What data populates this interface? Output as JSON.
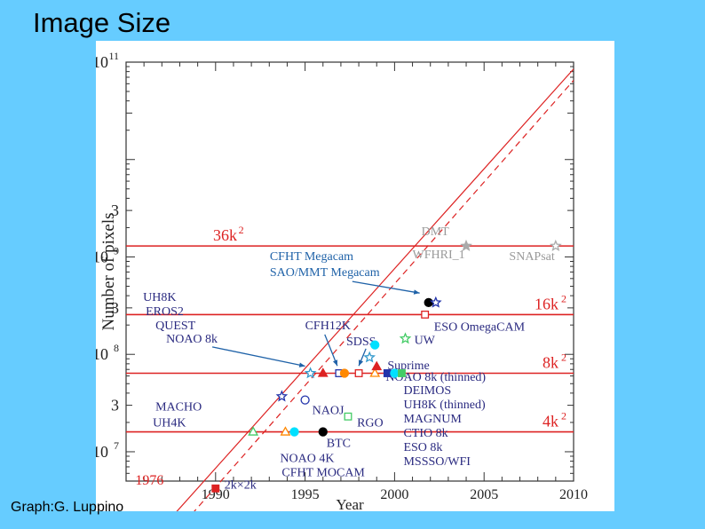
{
  "slide": {
    "title": "Image Size",
    "credit": "Graph:G. Luppino"
  },
  "chart_data": {
    "type": "scatter",
    "ylabel": "Number of pixels",
    "xlabel": "Year",
    "xlim": [
      1985,
      2010
    ],
    "ylim": [
      5000000,
      100000000000
    ],
    "yscale": "log",
    "x_ticks": [
      "1990",
      "1995",
      "2000",
      "2005",
      "2010"
    ],
    "y_tick_labels": [
      {
        "value": 100000000000,
        "base": "10",
        "exp": "11"
      },
      {
        "value": 3000000000,
        "base": "3",
        "exp": ""
      },
      {
        "value": 1000000000,
        "base": "10",
        "exp": "9"
      },
      {
        "value": 300000000,
        "base": "3",
        "exp": ""
      },
      {
        "value": 100000000,
        "base": "10",
        "exp": "8"
      },
      {
        "value": 30000000,
        "base": "3",
        "exp": ""
      },
      {
        "value": 10000000,
        "base": "10",
        "exp": "7"
      }
    ],
    "reference_lines": [
      {
        "label": "36k",
        "exp": "2",
        "value": 1296000000,
        "color": "#dd2222"
      },
      {
        "label": "16k",
        "exp": "2",
        "value": 256000000,
        "color": "#dd2222"
      },
      {
        "label": "8k",
        "exp": "2",
        "value": 64000000,
        "color": "#dd2222"
      },
      {
        "label": "4k",
        "exp": "2",
        "value": 16000000,
        "color": "#dd2222"
      }
    ],
    "trend_label": "1976",
    "points": [
      {
        "x": 1990,
        "y": 4200000,
        "shape": "square",
        "color": "#dd2222",
        "fill": true
      },
      {
        "x": 1992.1,
        "y": 16000000,
        "shape": "triangle",
        "color": "#44cc66",
        "fill": false
      },
      {
        "x": 1993.9,
        "y": 16000000,
        "shape": "triangle",
        "color": "#ff8800",
        "fill": false
      },
      {
        "x": 1994.4,
        "y": 16000000,
        "shape": "circle",
        "color": "#00e0ff",
        "fill": true
      },
      {
        "x": 1996,
        "y": 16000000,
        "shape": "circle",
        "color": "#000000",
        "fill": true
      },
      {
        "x": 1993.7,
        "y": 37000000,
        "shape": "star",
        "color": "#2233aa",
        "fill": false
      },
      {
        "x": 1995,
        "y": 34000000,
        "shape": "circle",
        "color": "#2233aa",
        "fill": false
      },
      {
        "x": 1997.4,
        "y": 23000000,
        "shape": "square",
        "color": "#44cc66",
        "fill": false
      },
      {
        "x": 1995.3,
        "y": 64000000,
        "shape": "star",
        "color": "#3399cc",
        "fill": false
      },
      {
        "x": 1996,
        "y": 64000000,
        "shape": "triangle",
        "color": "#dd2222",
        "fill": true
      },
      {
        "x": 1996.9,
        "y": 64000000,
        "shape": "square",
        "color": "#2233aa",
        "fill": false
      },
      {
        "x": 1997.2,
        "y": 64000000,
        "shape": "circle",
        "color": "#ff8800",
        "fill": true
      },
      {
        "x": 1998.0,
        "y": 64000000,
        "shape": "square",
        "color": "#dd2222",
        "fill": false
      },
      {
        "x": 1998.9,
        "y": 64000000,
        "shape": "triangle",
        "color": "#ff8800",
        "fill": false
      },
      {
        "x": 1999.6,
        "y": 64000000,
        "shape": "square",
        "color": "#2233aa",
        "fill": true
      },
      {
        "x": 2000.0,
        "y": 64000000,
        "shape": "circle",
        "color": "#00e0ff",
        "fill": true
      },
      {
        "x": 2000.4,
        "y": 64000000,
        "shape": "square",
        "color": "#44cc66",
        "fill": true
      },
      {
        "x": 1999.0,
        "y": 75000000,
        "shape": "triangle",
        "color": "#dd2222",
        "fill": true
      },
      {
        "x": 1998.6,
        "y": 93000000,
        "shape": "star",
        "color": "#3399cc",
        "fill": false
      },
      {
        "x": 1998.9,
        "y": 125000000,
        "shape": "circle",
        "color": "#00e0ff",
        "fill": true
      },
      {
        "x": 2000.6,
        "y": 145000000,
        "shape": "star",
        "color": "#44cc66",
        "fill": false
      },
      {
        "x": 2001.7,
        "y": 256000000,
        "shape": "square",
        "color": "#dd2222",
        "fill": false
      },
      {
        "x": 2001.9,
        "y": 340000000,
        "shape": "circle",
        "color": "#000000",
        "fill": true
      },
      {
        "x": 2002.3,
        "y": 340000000,
        "shape": "star",
        "color": "#2233aa",
        "fill": false
      },
      {
        "x": 2004,
        "y": 1296000000,
        "shape": "star",
        "color": "#aaaaaa",
        "fill": true
      },
      {
        "x": 2009,
        "y": 1296000000,
        "shape": "star",
        "color": "#aaaaaa",
        "fill": false
      }
    ],
    "annotations": [
      {
        "text": "DMT",
        "color": "#999999"
      },
      {
        "text": "WFHRI_1",
        "color": "#999999"
      },
      {
        "text": "SNAPsat",
        "color": "#999999"
      },
      {
        "text": "CFHT Megacam",
        "color": "#1f62a8"
      },
      {
        "text": "SAO/MMT Megacam",
        "color": "#1f62a8"
      },
      {
        "text": "UH8K",
        "color": "#2a2a80"
      },
      {
        "text": "EROS2",
        "color": "#2a2a80"
      },
      {
        "text": "QUEST",
        "color": "#2a2a80"
      },
      {
        "text": "NOAO 8k",
        "color": "#2a2a80"
      },
      {
        "text": "CFH12K",
        "color": "#2a2a80"
      },
      {
        "text": "SDSS",
        "color": "#2a2a80"
      },
      {
        "text": "ESO OmegaCAM",
        "color": "#2a2a80"
      },
      {
        "text": "UW",
        "color": "#2a2a80"
      },
      {
        "text": "Suprime",
        "color": "#2a2a80"
      },
      {
        "text": "MACHO",
        "color": "#2a2a80"
      },
      {
        "text": "NAOJ",
        "color": "#2a2a80"
      },
      {
        "text": "RGO",
        "color": "#2a2a80"
      },
      {
        "text": "UH4K",
        "color": "#2a2a80"
      },
      {
        "text": "BTC",
        "color": "#2a2a80"
      },
      {
        "text": "NOAO 4K",
        "color": "#2a2a80"
      },
      {
        "text": "CFHT MOCAM",
        "color": "#2a2a80"
      },
      {
        "text": "NOAO 8k (thinned)",
        "color": "#2a2a80"
      },
      {
        "text": "DEIMOS",
        "color": "#2a2a80"
      },
      {
        "text": "UH8K (thinned)",
        "color": "#2a2a80"
      },
      {
        "text": "MAGNUM",
        "color": "#2a2a80"
      },
      {
        "text": "CTIO 8k",
        "color": "#2a2a80"
      },
      {
        "text": "ESO 8k",
        "color": "#2a2a80"
      },
      {
        "text": "MSSSO/WFI",
        "color": "#2a2a80"
      },
      {
        "text": "2k×2k",
        "color": "#2a2a80"
      }
    ]
  }
}
